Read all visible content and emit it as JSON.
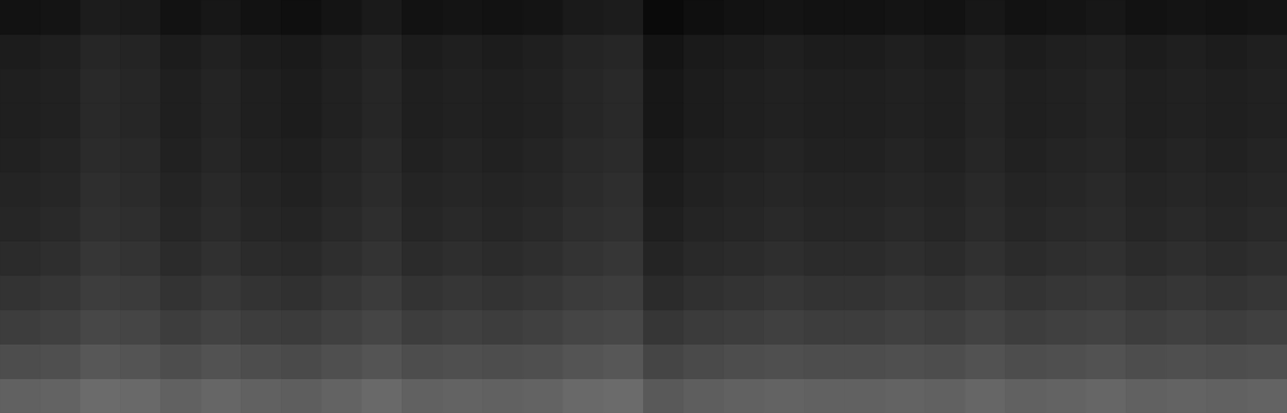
{
  "chart_data": {
    "type": "heatmap",
    "tick_labels": false,
    "xlim": [
      0,
      32
    ],
    "ylim": [
      0,
      12
    ],
    "color_range": [
      0,
      1
    ],
    "cells": [
      [
        0.38,
        0.39,
        0.42,
        0.41,
        0.38,
        0.4,
        0.38,
        0.37,
        0.39,
        0.41,
        0.38,
        0.39,
        0.38,
        0.39,
        0.41,
        0.42,
        0.35,
        0.37,
        0.38,
        0.39,
        0.38,
        0.38,
        0.39,
        0.38,
        0.4,
        0.38,
        0.39,
        0.4,
        0.38,
        0.39,
        0.38,
        0.39
      ],
      [
        0.3,
        0.31,
        0.34,
        0.33,
        0.3,
        0.32,
        0.3,
        0.29,
        0.31,
        0.33,
        0.3,
        0.31,
        0.3,
        0.31,
        0.33,
        0.34,
        0.27,
        0.29,
        0.3,
        0.31,
        0.3,
        0.3,
        0.31,
        0.3,
        0.32,
        0.3,
        0.31,
        0.32,
        0.3,
        0.31,
        0.3,
        0.31
      ],
      [
        0.24,
        0.25,
        0.28,
        0.27,
        0.24,
        0.26,
        0.24,
        0.23,
        0.25,
        0.27,
        0.24,
        0.25,
        0.24,
        0.25,
        0.27,
        0.28,
        0.21,
        0.23,
        0.24,
        0.25,
        0.24,
        0.24,
        0.25,
        0.24,
        0.26,
        0.24,
        0.25,
        0.26,
        0.24,
        0.25,
        0.24,
        0.25
      ],
      [
        0.2,
        0.21,
        0.24,
        0.23,
        0.2,
        0.22,
        0.2,
        0.19,
        0.21,
        0.23,
        0.2,
        0.21,
        0.2,
        0.21,
        0.23,
        0.24,
        0.17,
        0.19,
        0.2,
        0.21,
        0.2,
        0.2,
        0.21,
        0.2,
        0.22,
        0.2,
        0.21,
        0.22,
        0.2,
        0.21,
        0.2,
        0.21
      ],
      [
        0.17,
        0.18,
        0.21,
        0.2,
        0.17,
        0.19,
        0.17,
        0.16,
        0.18,
        0.2,
        0.17,
        0.18,
        0.17,
        0.18,
        0.2,
        0.21,
        0.14,
        0.16,
        0.17,
        0.18,
        0.17,
        0.17,
        0.18,
        0.17,
        0.19,
        0.17,
        0.18,
        0.19,
        0.17,
        0.18,
        0.17,
        0.18
      ],
      [
        0.15,
        0.16,
        0.19,
        0.18,
        0.15,
        0.17,
        0.15,
        0.14,
        0.16,
        0.18,
        0.15,
        0.16,
        0.15,
        0.16,
        0.18,
        0.19,
        0.12,
        0.14,
        0.15,
        0.16,
        0.15,
        0.15,
        0.16,
        0.15,
        0.17,
        0.15,
        0.16,
        0.17,
        0.15,
        0.16,
        0.15,
        0.16
      ],
      [
        0.14,
        0.15,
        0.18,
        0.17,
        0.14,
        0.16,
        0.14,
        0.13,
        0.15,
        0.17,
        0.14,
        0.15,
        0.14,
        0.15,
        0.17,
        0.18,
        0.11,
        0.13,
        0.14,
        0.15,
        0.14,
        0.14,
        0.15,
        0.14,
        0.16,
        0.14,
        0.15,
        0.16,
        0.14,
        0.15,
        0.14,
        0.15
      ],
      [
        0.13,
        0.14,
        0.17,
        0.16,
        0.13,
        0.15,
        0.13,
        0.12,
        0.14,
        0.16,
        0.13,
        0.14,
        0.13,
        0.14,
        0.16,
        0.17,
        0.1,
        0.12,
        0.13,
        0.14,
        0.13,
        0.13,
        0.14,
        0.13,
        0.15,
        0.13,
        0.14,
        0.15,
        0.13,
        0.14,
        0.13,
        0.14
      ],
      [
        0.12,
        0.13,
        0.16,
        0.15,
        0.12,
        0.14,
        0.12,
        0.11,
        0.13,
        0.15,
        0.12,
        0.13,
        0.12,
        0.13,
        0.15,
        0.16,
        0.09,
        0.11,
        0.12,
        0.13,
        0.12,
        0.12,
        0.13,
        0.12,
        0.14,
        0.12,
        0.13,
        0.14,
        0.12,
        0.13,
        0.12,
        0.13
      ],
      [
        0.12,
        0.13,
        0.16,
        0.15,
        0.12,
        0.14,
        0.12,
        0.11,
        0.13,
        0.15,
        0.12,
        0.13,
        0.12,
        0.13,
        0.15,
        0.16,
        0.09,
        0.11,
        0.12,
        0.13,
        0.12,
        0.12,
        0.13,
        0.12,
        0.14,
        0.12,
        0.13,
        0.14,
        0.12,
        0.13,
        0.12,
        0.13
      ],
      [
        0.11,
        0.12,
        0.15,
        0.14,
        0.11,
        0.13,
        0.11,
        0.1,
        0.12,
        0.14,
        0.11,
        0.12,
        0.11,
        0.12,
        0.14,
        0.15,
        0.08,
        0.1,
        0.11,
        0.12,
        0.11,
        0.11,
        0.12,
        0.11,
        0.13,
        0.11,
        0.12,
        0.13,
        0.11,
        0.12,
        0.11,
        0.12
      ],
      [
        0.07,
        0.08,
        0.11,
        0.1,
        0.07,
        0.09,
        0.07,
        0.06,
        0.08,
        0.1,
        0.07,
        0.08,
        0.07,
        0.08,
        0.1,
        0.11,
        0.04,
        0.06,
        0.07,
        0.08,
        0.07,
        0.07,
        0.08,
        0.07,
        0.09,
        0.07,
        0.08,
        0.09,
        0.07,
        0.08,
        0.07,
        0.08
      ]
    ]
  }
}
